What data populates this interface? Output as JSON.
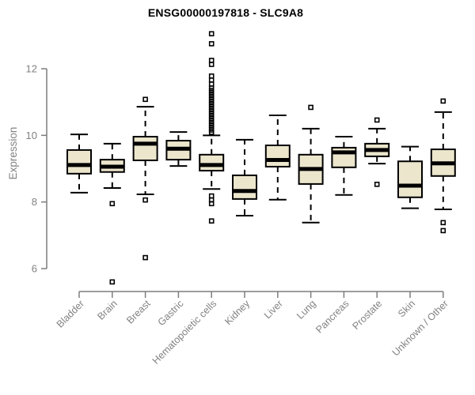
{
  "chart_data": {
    "type": "boxplot",
    "title": "ENSG00000197818 - SLC9A8",
    "ylabel": "Expression",
    "xlabel": "",
    "ylim": [
      6,
      12
    ],
    "yticks": [
      6,
      8,
      10,
      12
    ],
    "grid": false,
    "legend": false,
    "categories": [
      "Bladder",
      "Brain",
      "Breast",
      "Gastric",
      "Hematopoietic cells",
      "Kidney",
      "Liver",
      "Lung",
      "Pancreas",
      "Prostate",
      "Skin",
      "Unknown / Other"
    ],
    "series": [
      {
        "category": "Bladder",
        "whisker_low": 8.28,
        "q1": 8.85,
        "median": 9.11,
        "q3": 9.56,
        "whisker_high": 10.03,
        "outliers": []
      },
      {
        "category": "Brain",
        "whisker_low": 8.42,
        "q1": 8.9,
        "median": 9.06,
        "q3": 9.27,
        "whisker_high": 9.75,
        "outliers": [
          7.95,
          5.6
        ]
      },
      {
        "category": "Breast",
        "whisker_low": 8.23,
        "q1": 9.25,
        "median": 9.75,
        "q3": 9.96,
        "whisker_high": 10.86,
        "outliers": [
          11.08,
          8.06,
          6.33
        ]
      },
      {
        "category": "Gastric",
        "whisker_low": 9.08,
        "q1": 9.27,
        "median": 9.6,
        "q3": 9.84,
        "whisker_high": 10.1,
        "outliers": []
      },
      {
        "category": "Hematopoietic cells",
        "whisker_low": 8.39,
        "q1": 8.94,
        "median": 9.11,
        "q3": 9.42,
        "whisker_high": 10.0,
        "outliers": [
          13.05,
          12.75,
          12.25,
          12.13,
          11.78,
          11.66,
          11.54,
          11.42,
          11.35,
          11.28,
          11.21,
          11.14,
          11.07,
          11.0,
          10.93,
          10.86,
          10.79,
          10.72,
          10.65,
          10.58,
          10.51,
          10.44,
          10.37,
          10.3,
          10.23,
          10.16,
          10.09,
          8.18,
          8.06,
          7.95,
          7.43
        ]
      },
      {
        "category": "Kidney",
        "whisker_low": 7.59,
        "q1": 8.09,
        "median": 8.33,
        "q3": 8.8,
        "whisker_high": 9.87,
        "outliers": []
      },
      {
        "category": "Liver",
        "whisker_low": 8.07,
        "q1": 9.06,
        "median": 9.26,
        "q3": 9.7,
        "whisker_high": 10.6,
        "outliers": []
      },
      {
        "category": "Lung",
        "whisker_low": 7.38,
        "q1": 8.54,
        "median": 8.99,
        "q3": 9.42,
        "whisker_high": 10.2,
        "outliers": [
          10.84
        ]
      },
      {
        "category": "Pancreas",
        "whisker_low": 8.21,
        "q1": 9.04,
        "median": 9.49,
        "q3": 9.63,
        "whisker_high": 9.96,
        "outliers": []
      },
      {
        "category": "Prostate",
        "whisker_low": 9.15,
        "q1": 9.37,
        "median": 9.56,
        "q3": 9.75,
        "whisker_high": 10.2,
        "outliers": [
          10.46,
          8.53
        ]
      },
      {
        "category": "Skin",
        "whisker_low": 7.81,
        "q1": 8.14,
        "median": 8.49,
        "q3": 9.22,
        "whisker_high": 9.66,
        "outliers": []
      },
      {
        "category": "Unknown / Other",
        "whisker_low": 7.78,
        "q1": 8.78,
        "median": 9.16,
        "q3": 9.58,
        "whisker_high": 10.7,
        "outliers": [
          11.03,
          7.38,
          7.14
        ]
      }
    ],
    "colors": {
      "box_fill": "#EBE6CC",
      "box_border": "#000000",
      "median": "#000000",
      "whisker": "#000000",
      "outlier": "#000000",
      "axis": "#7d7d7d",
      "tick_label": "#828282",
      "title": "#000000",
      "background": "#ffffff"
    }
  }
}
